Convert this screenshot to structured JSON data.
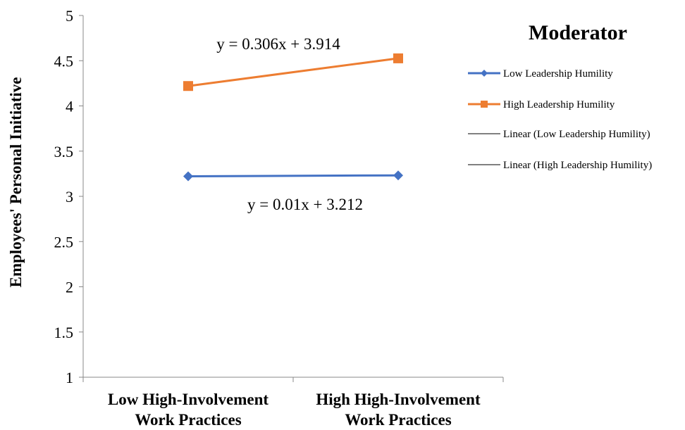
{
  "chart_data": {
    "type": "line",
    "categories": [
      [
        "Low High-Involvement",
        "Work Practices"
      ],
      [
        "High High-Involvement",
        "Work Practices"
      ]
    ],
    "ylabel": "Employees' Personal Initiative",
    "ylim": [
      1,
      5
    ],
    "yticks": [
      "1",
      "1.5",
      "2",
      "2.5",
      "3",
      "3.5",
      "4",
      "4.5",
      "5"
    ],
    "grid": false,
    "legend": {
      "title": "Moderator",
      "placement": "right",
      "entries": [
        "Low Leadership Humility",
        "High Leadership Humility",
        "Linear (Low Leadership Humility)",
        "Linear (High Leadership Humility)"
      ]
    },
    "series": [
      {
        "name": "Low Leadership Humility",
        "values": [
          3.222,
          3.232
        ],
        "color": "#4472C4",
        "marker": "diamond"
      },
      {
        "name": "High Leadership Humility",
        "values": [
          4.22,
          4.526
        ],
        "color": "#ED7D31",
        "marker": "square"
      }
    ],
    "trendlines": [
      {
        "name": "Linear (Low Leadership Humility)",
        "slope": 0.01,
        "intercept": 3.212,
        "equation": "y = 0.01x + 3.212",
        "color": "#000000"
      },
      {
        "name": "Linear (High Leadership Humility)",
        "slope": 0.306,
        "intercept": 3.914,
        "equation": "y = 0.306x + 3.914",
        "color": "#000000"
      }
    ]
  }
}
